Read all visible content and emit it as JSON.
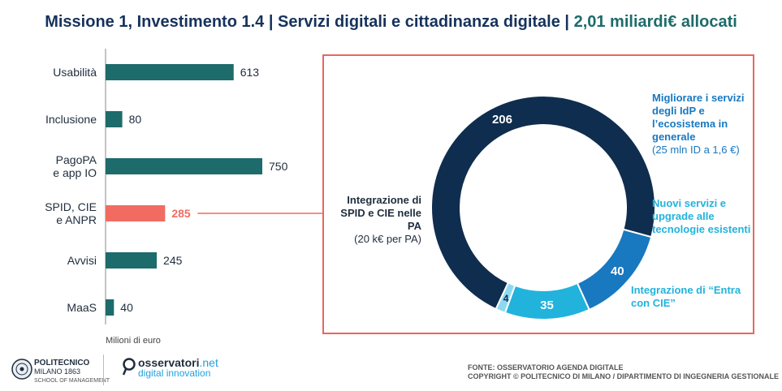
{
  "header": {
    "title_main": "Missione 1, Investimento 1.4 | Servizi digitali e cittadinanza digitale |",
    "title_accent": "2,01 miliardi€ allocati"
  },
  "chart_data": [
    {
      "type": "bar",
      "orientation": "horizontal",
      "categories": [
        "Usabilità",
        "Inclusione",
        "PagoPA e app IO",
        "SPID, CIE e ANPR",
        "Avvisi",
        "MaaS"
      ],
      "category_lines": [
        [
          "Usabilità"
        ],
        [
          "Inclusione"
        ],
        [
          "PagoPA",
          "e app IO"
        ],
        [
          "SPID, CIE",
          "e ANPR"
        ],
        [
          "Avvisi"
        ],
        [
          "MaaS"
        ]
      ],
      "values": [
        613,
        80,
        750,
        285,
        245,
        40
      ],
      "highlight_index": 3,
      "xlabel": "Milioni di euro",
      "xlim": [
        0,
        750
      ],
      "grid": false,
      "colors": {
        "default": "#1e6b6b",
        "highlight": "#f26b61"
      }
    },
    {
      "type": "pie",
      "variant": "donut",
      "categories": [
        "Integrazione di SPID e CIE nelle PA",
        "Migliorare i servizi degli IdP e l'ecosistema in generale",
        "Nuovi servizi e upgrade alle tecnologie esistenti",
        "Integrazione di \"Entra con CIE\""
      ],
      "values": [
        206,
        40,
        35,
        4
      ],
      "value_labels": [
        "206",
        "40",
        "35",
        "4"
      ],
      "colors": [
        "#0f2d4f",
        "#1878c0",
        "#21b3dc",
        "#8fd9f0"
      ],
      "label_colors": [
        "#ffffff",
        "#ffffff",
        "#ffffff",
        "#0f2d4f"
      ],
      "annotations": {
        "spid_title": "Integrazione di SPID e CIE nelle PA",
        "spid_sub": "(20 k€ per PA)",
        "idp_title": "Migliorare i servizi degli IdP e l’ecosistema in generale",
        "idp_sub": "(25 mln ID a 1,6 €)",
        "nuovi_title": "Nuovi servizi e upgrade alle tecnologie esistenti",
        "entra_title": "Integrazione di “Entra con CIE”"
      }
    }
  ],
  "footer": {
    "polimi_name": "POLITECNICO",
    "polimi_line2": "MILANO 1863",
    "polimi_line3": "SCHOOL OF MANAGEMENT",
    "osserv_name": "osservatori",
    "osserv_net": ".net",
    "osserv_tag": "digital innovation",
    "source_line1": "FONTE: OSSERVATORIO AGENDA DIGITALE",
    "source_line2": "COPYRIGHT © POLITECNICO DI MILANO / DIPARTIMENTO DI INGEGNERIA GESTIONALE"
  }
}
